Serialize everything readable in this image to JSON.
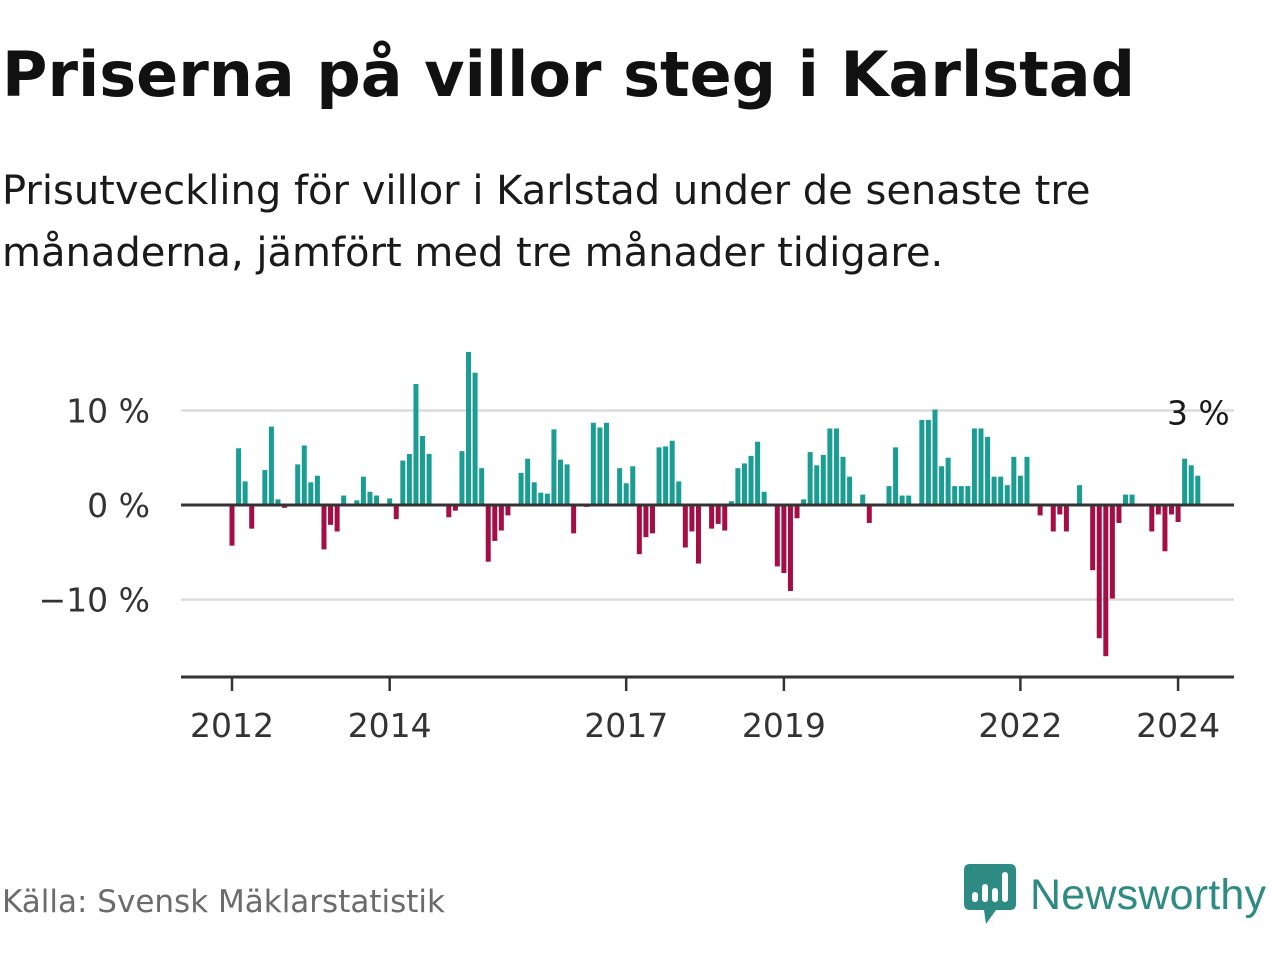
{
  "title": "Priserna på villor steg i Karlstad",
  "subtitle": "Prisutveckling för villor i Karlstad under de senaste tre månaderna, jämfört med tre månader tidigare.",
  "source": "Källa: Svensk Mäklarstatistik",
  "logo": {
    "text": "Newsworthy",
    "icon": "newsworthy-logo-icon"
  },
  "colors": {
    "positive": "#1a9e94",
    "negative": "#a50d45",
    "logo": "#2e8b83",
    "grid": "#dcdcdc",
    "axis": "#333333"
  },
  "chart_data": {
    "type": "bar",
    "title": "",
    "xlabel": "",
    "ylabel": "",
    "unit": "%",
    "ylim": [
      -18,
      16.5
    ],
    "y_ticks": [
      {
        "value": 10,
        "label": "10 %"
      },
      {
        "value": 0,
        "label": "0 %"
      },
      {
        "value": -10,
        "label": "−10 %"
      }
    ],
    "x_ticks": [
      {
        "year": 2012,
        "label": "2012"
      },
      {
        "year": 2014,
        "label": "2014"
      },
      {
        "year": 2017,
        "label": "2017"
      },
      {
        "year": 2019,
        "label": "2019"
      },
      {
        "year": 2022,
        "label": "2022"
      },
      {
        "year": 2024,
        "label": "2024"
      }
    ],
    "start": "2012-01",
    "last_label": "3 %",
    "values": [
      -4.3,
      6.0,
      2.5,
      -2.5,
      0,
      3.7,
      8.3,
      0.6,
      -0.3,
      0,
      4.3,
      6.3,
      2.4,
      3.1,
      -4.7,
      -2.1,
      -2.8,
      1.0,
      0,
      0.5,
      3.0,
      1.4,
      1.0,
      0,
      0.7,
      -1.5,
      4.7,
      5.4,
      12.8,
      7.3,
      5.4,
      0,
      0,
      -1.3,
      -0.6,
      5.7,
      16.2,
      14.0,
      3.9,
      -6.0,
      -3.8,
      -2.7,
      -1.1,
      0,
      3.4,
      4.9,
      2.4,
      1.3,
      1.2,
      8.0,
      4.8,
      4.3,
      -3.0,
      0,
      -0.2,
      8.7,
      8.2,
      8.7,
      0,
      3.9,
      2.3,
      4.1,
      -5.2,
      -3.4,
      -3.0,
      6.1,
      6.2,
      6.8,
      2.5,
      -4.5,
      -2.8,
      -6.2,
      0,
      -2.5,
      -2.0,
      -2.7,
      0.4,
      3.9,
      4.4,
      5.2,
      6.7,
      1.4,
      0,
      -6.5,
      -7.2,
      -9.1,
      -1.4,
      0.6,
      5.6,
      4.2,
      5.3,
      8.1,
      8.1,
      5.1,
      3.0,
      0,
      1.1,
      -1.9,
      0,
      0,
      2.0,
      6.1,
      1.0,
      1.0,
      0,
      9.0,
      9.0,
      10.1,
      4.1,
      5.0,
      2.0,
      2.0,
      2.0,
      8.1,
      8.1,
      7.2,
      3.0,
      3.0,
      2.1,
      5.1,
      3.1,
      5.1,
      0,
      -1.1,
      0,
      -2.8,
      -1.0,
      -2.8,
      0,
      2.1,
      0,
      -6.9,
      -14.1,
      -16.0,
      -9.9,
      -1.9,
      1.1,
      1.1,
      0,
      0,
      -2.8,
      -1.0,
      -4.9,
      -1.0,
      -1.8,
      4.9,
      4.2,
      3.1
    ]
  }
}
